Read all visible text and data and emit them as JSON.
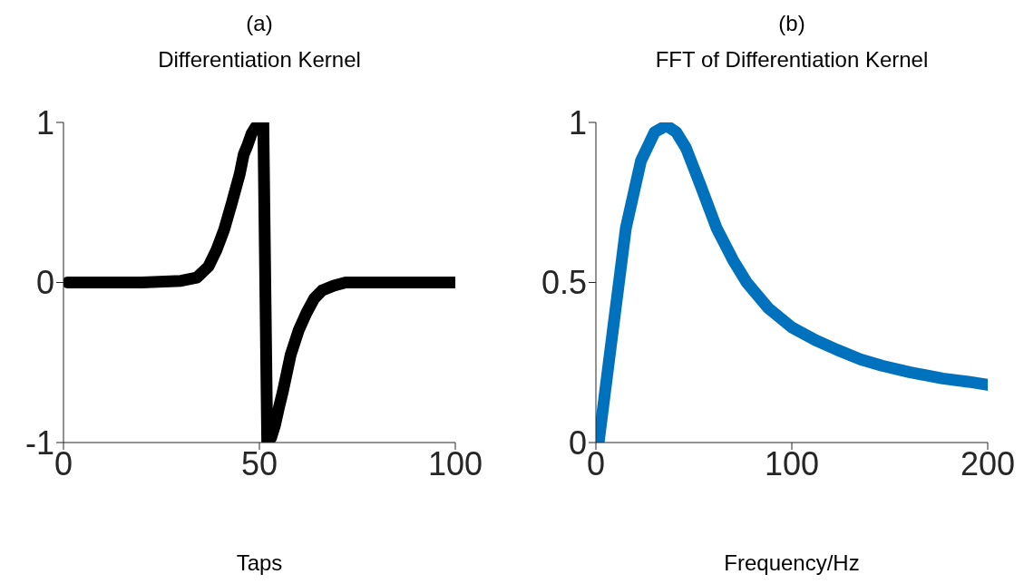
{
  "chart_data": [
    {
      "type": "line",
      "annotations": [
        "(a)"
      ],
      "title": "Differentiation Kernel",
      "xlabel": "Taps",
      "xlim": [
        0,
        100
      ],
      "xticks": [
        0,
        50,
        100
      ],
      "ylim": [
        -1,
        1
      ],
      "yticks": [
        -1,
        0,
        1
      ],
      "series": [
        {
          "color": "#000000",
          "x": [
            1,
            10,
            20,
            30,
            34,
            37,
            39,
            41,
            43,
            45,
            46,
            47,
            48,
            49,
            50,
            51,
            52,
            53,
            54,
            55,
            56,
            58,
            60,
            62,
            64,
            66,
            69,
            72,
            80,
            90,
            100
          ],
          "values": [
            0,
            0,
            0,
            0.01,
            0.03,
            0.1,
            0.2,
            0.33,
            0.5,
            0.68,
            0.8,
            0.86,
            0.93,
            0.97,
            0.99,
            1,
            -1,
            -0.97,
            -0.89,
            -0.78,
            -0.68,
            -0.45,
            -0.3,
            -0.19,
            -0.1,
            -0.05,
            -0.02,
            0,
            0,
            0,
            0
          ]
        }
      ]
    },
    {
      "type": "line",
      "annotations": [
        "(b)"
      ],
      "title": "FFT of Differentiation Kernel",
      "xlabel": "Frequency/Hz",
      "xlim": [
        0,
        200
      ],
      "xticks": [
        0,
        100,
        200
      ],
      "ylim": [
        0,
        1
      ],
      "yticks": [
        0,
        0.5,
        1
      ],
      "series": [
        {
          "color": "#0072bd",
          "x": [
            1.4,
            7.4,
            15.3,
            23,
            30,
            36,
            41,
            46,
            53,
            61.6,
            70,
            77,
            88,
            100,
            112,
            123,
            135,
            146,
            160,
            177,
            190,
            200
          ],
          "values": [
            0,
            0.29,
            0.67,
            0.88,
            0.97,
            0.99,
            0.97,
            0.92,
            0.81,
            0.67,
            0.57,
            0.5,
            0.42,
            0.36,
            0.32,
            0.29,
            0.26,
            0.24,
            0.22,
            0.2,
            0.19,
            0.18
          ]
        }
      ]
    }
  ]
}
